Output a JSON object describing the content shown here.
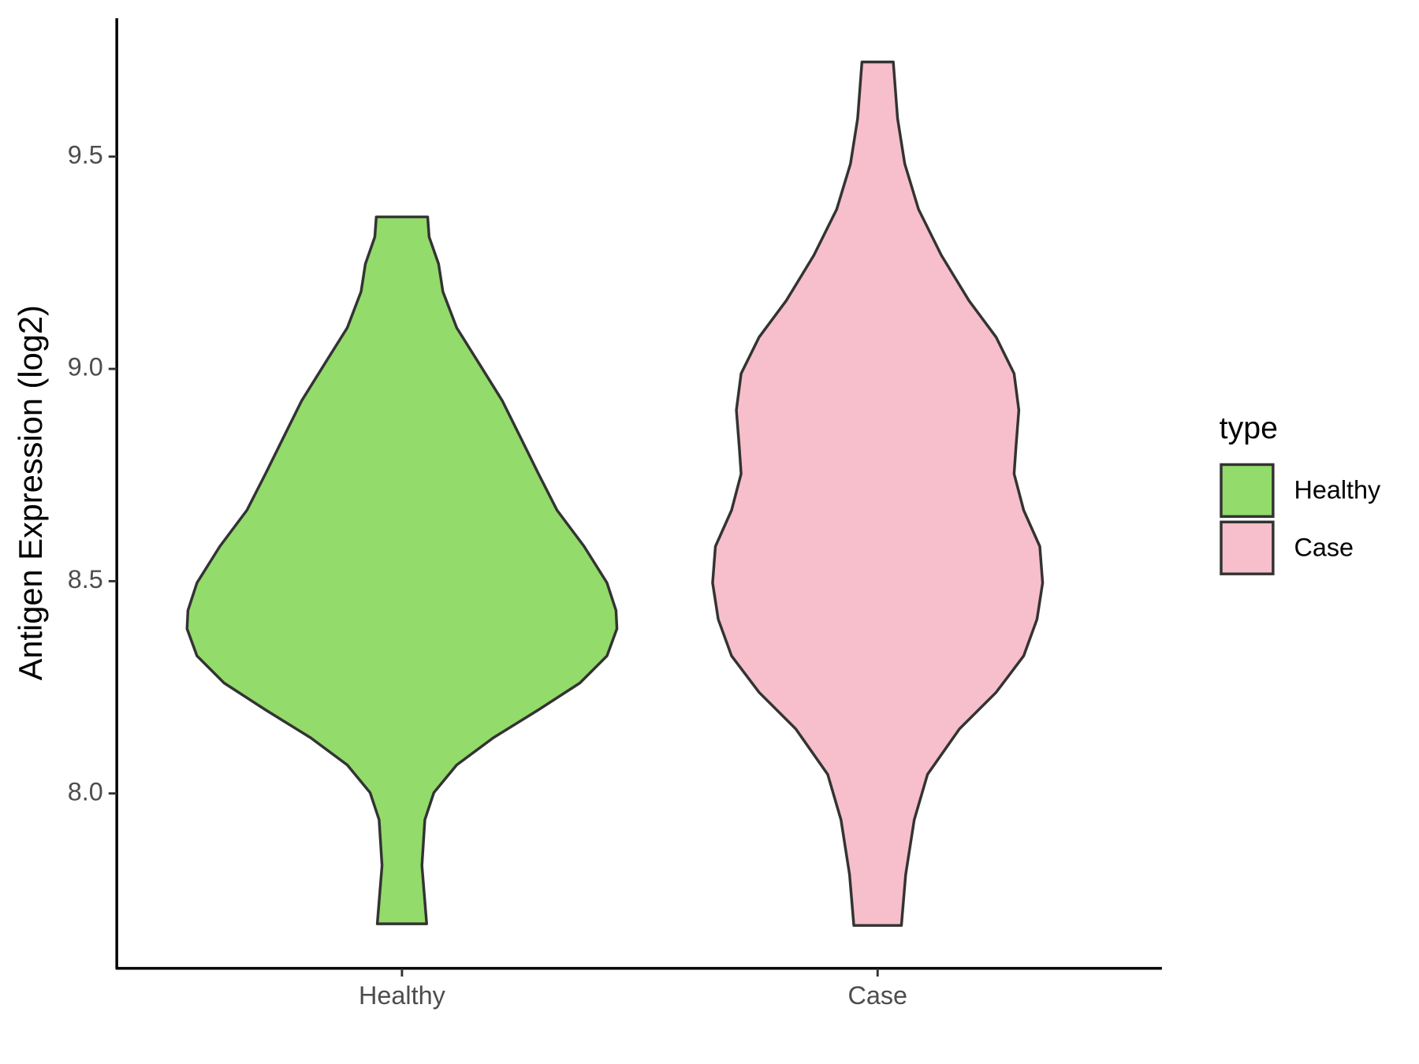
{
  "chart_data": {
    "type": "violin",
    "y_label": "Antigen Expression (log2)",
    "categories": [
      "Healthy",
      "Case"
    ],
    "legend_title": "type",
    "legend_position": "right",
    "ylim": [
      7.588,
      9.826
    ],
    "yticks": [
      {
        "value": 8,
        "label": "8.0"
      },
      8.5,
      {
        "value": 9,
        "label": "9.0"
      },
      9.5
    ],
    "series": [
      {
        "name": "Healthy",
        "color": "#93db6a",
        "y": [
          7.693,
          7.83,
          7.938,
          8.002,
          8.067,
          8.131,
          8.197,
          8.26,
          8.324,
          8.388,
          8.431,
          8.496,
          8.582,
          8.667,
          8.753,
          8.839,
          8.925,
          9.011,
          9.097,
          9.182,
          9.247,
          9.311,
          9.358
        ],
        "width": [
          0.052,
          0.042,
          0.048,
          0.067,
          0.115,
          0.192,
          0.287,
          0.374,
          0.431,
          0.452,
          0.45,
          0.431,
          0.383,
          0.326,
          0.287,
          0.249,
          0.211,
          0.163,
          0.115,
          0.086,
          0.077,
          0.057,
          0.054
        ]
      },
      {
        "name": "Case",
        "color": "#f7bfcb",
        "y": [
          7.689,
          7.809,
          7.938,
          8.045,
          8.152,
          8.238,
          8.324,
          8.41,
          8.496,
          8.582,
          8.667,
          8.753,
          8.818,
          8.903,
          8.989,
          9.075,
          9.161,
          9.268,
          9.376,
          9.483,
          9.59,
          9.723
        ],
        "width": [
          0.05,
          0.059,
          0.077,
          0.105,
          0.172,
          0.249,
          0.307,
          0.335,
          0.347,
          0.341,
          0.307,
          0.287,
          0.291,
          0.297,
          0.287,
          0.249,
          0.192,
          0.134,
          0.086,
          0.057,
          0.042,
          0.033
        ]
      }
    ]
  }
}
